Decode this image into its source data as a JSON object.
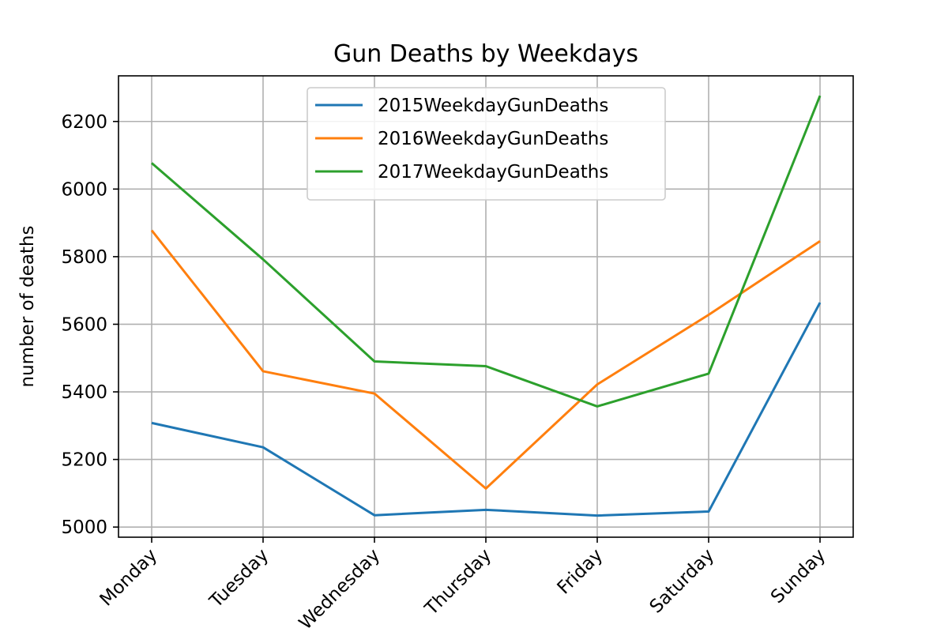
{
  "chart_data": {
    "type": "line",
    "title": "Gun Deaths by Weekdays",
    "xlabel": "",
    "ylabel": "number of deaths",
    "categories": [
      "Monday",
      "Tuesday",
      "Wednesday",
      "Thursday",
      "Friday",
      "Saturday",
      "Sunday"
    ],
    "yticks": [
      5000,
      5200,
      5400,
      5600,
      5800,
      6000,
      6200
    ],
    "ylim": [
      4970,
      6335
    ],
    "grid": true,
    "legend_position": "top-center",
    "series": [
      {
        "name": "2015WeekdayGunDeaths",
        "color": "#1f77b4",
        "values": [
          5308,
          5236,
          5035,
          5051,
          5034,
          5046,
          5664
        ]
      },
      {
        "name": "2016WeekdayGunDeaths",
        "color": "#ff7f0e",
        "values": [
          5878,
          5461,
          5395,
          5114,
          5422,
          5628,
          5846
        ]
      },
      {
        "name": "2017WeekdayGunDeaths",
        "color": "#2ca02c",
        "values": [
          6077,
          5792,
          5490,
          5476,
          5357,
          5454,
          6276
        ]
      }
    ]
  }
}
